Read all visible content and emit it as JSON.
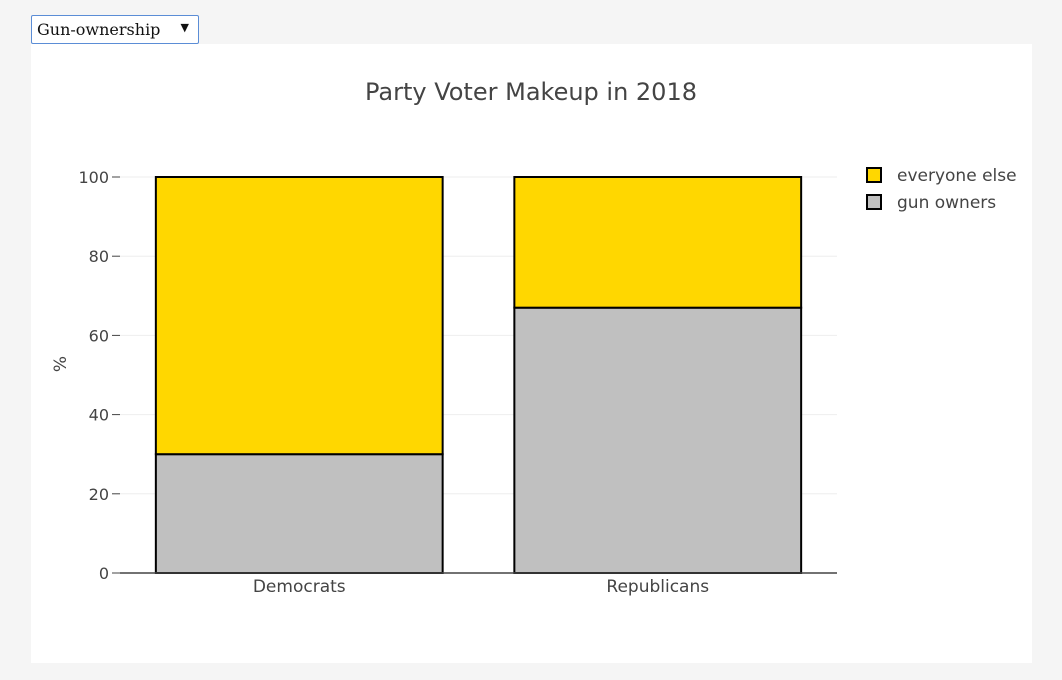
{
  "controls": {
    "dataset_select": {
      "selected": "Gun-ownership",
      "icon": "triangle-down-icon"
    }
  },
  "chart_data": {
    "type": "bar",
    "barmode": "stack",
    "title": "Party Voter Makeup in 2018",
    "xlabel": "",
    "ylabel": "%",
    "ylim": [
      0,
      100
    ],
    "yticks": [
      0,
      20,
      40,
      60,
      80,
      100
    ],
    "categories": [
      "Democrats",
      "Republicans"
    ],
    "series": [
      {
        "name": "gun owners",
        "values": [
          30,
          67
        ],
        "color": "#c0c0c0"
      },
      {
        "name": "everyone else",
        "values": [
          70,
          33
        ],
        "color": "#ffd700"
      }
    ],
    "legend": {
      "position": "top-right",
      "order": [
        "everyone else",
        "gun owners"
      ]
    },
    "grid": true,
    "colors": {
      "bar_outline": "#000000",
      "gridline": "#eeeeee",
      "text": "#444444"
    }
  }
}
